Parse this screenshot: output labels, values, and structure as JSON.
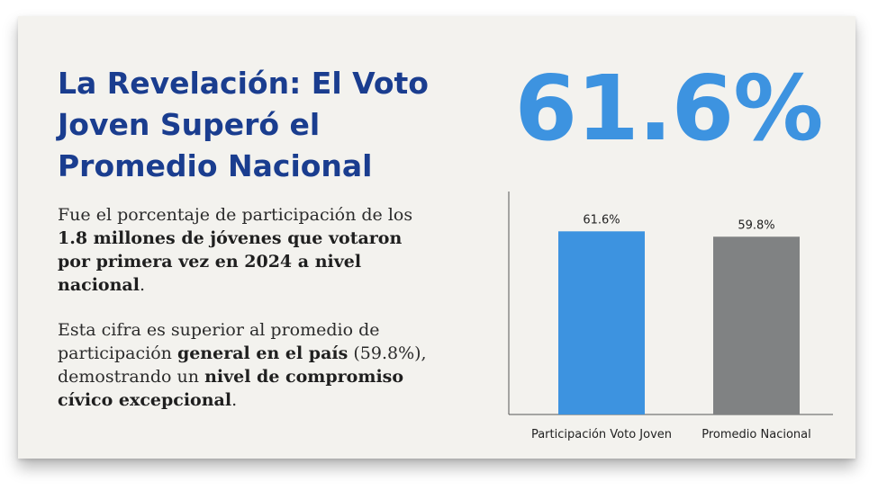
{
  "infographic": {
    "title": "La Revelación: El Voto Joven Superó el Promedio Nacional",
    "highlight": "61.6%",
    "paragraph1": {
      "pre": "Fue el porcentaje de participación de los ",
      "bold": "1.8 millones de jóvenes que votaron por primera vez en 2024 a nivel nacional",
      "post": "."
    },
    "paragraph2": {
      "pre1": "Esta cifra es superior al promedio de participación ",
      "bold1": "general en el país",
      "mid": " (59.8%), demostrando un ",
      "bold2": "nivel de compromiso cívico excepcional",
      "post": "."
    },
    "colors": {
      "title": "#1a3d8f",
      "highlight": "#3d93e0",
      "bar_youth": "#3d93e0",
      "bar_national": "#808283"
    }
  },
  "chart_data": {
    "type": "bar",
    "categories": [
      "Participación Voto Joven",
      "Promedio Nacional"
    ],
    "values": [
      61.6,
      59.8
    ],
    "value_labels": [
      "61.6%",
      "59.8%"
    ],
    "colors": [
      "#3d93e0",
      "#808283"
    ],
    "ylim": [
      0,
      75
    ],
    "grid": false,
    "title": "",
    "xlabel": "",
    "ylabel": ""
  }
}
